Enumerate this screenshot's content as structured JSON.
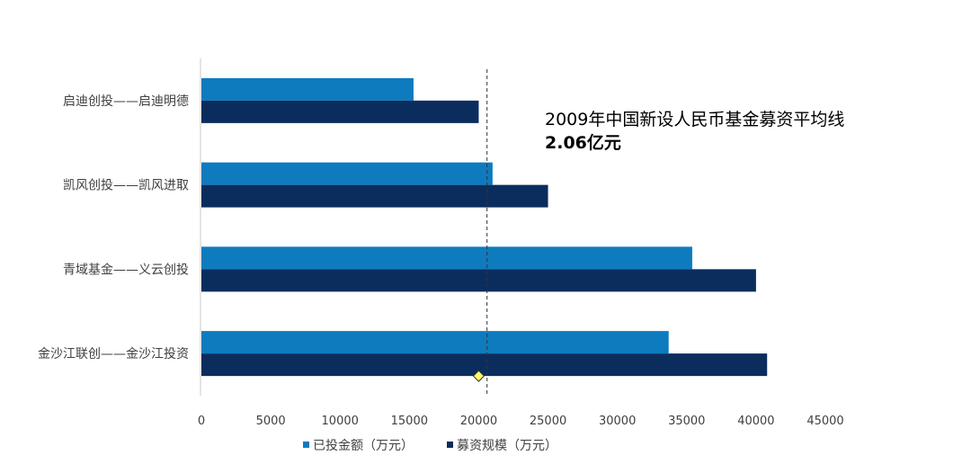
{
  "chart_data": {
    "type": "bar",
    "orientation": "horizontal",
    "categories": [
      "启迪创投——启迪明德",
      "凯风创投——凯风进取",
      "青域基金——义云创投",
      "金沙江联创——金沙江投资"
    ],
    "series": [
      {
        "name": "已投金额（万元）",
        "values": [
          15300,
          21000,
          35400,
          33700
        ],
        "color": "#0e7bbf"
      },
      {
        "name": "募资规模（万元）",
        "values": [
          20000,
          25000,
          40000,
          40800
        ],
        "color": "#0b2d5e"
      }
    ],
    "xlim": [
      0,
      45000
    ],
    "xticks": [
      0,
      5000,
      10000,
      15000,
      20000,
      25000,
      30000,
      35000,
      40000,
      45000
    ],
    "reference_line": {
      "value": 20600,
      "style": "dashed"
    },
    "marker": {
      "value": 20000,
      "category": "金沙江联创——金沙江投资",
      "shape": "diamond",
      "color": "#ffff66"
    },
    "legend": "bottom",
    "grid": false,
    "annotation": {
      "line1": "2009年中国新设人民币基金募资平均线",
      "line2": "2.06亿元"
    }
  }
}
